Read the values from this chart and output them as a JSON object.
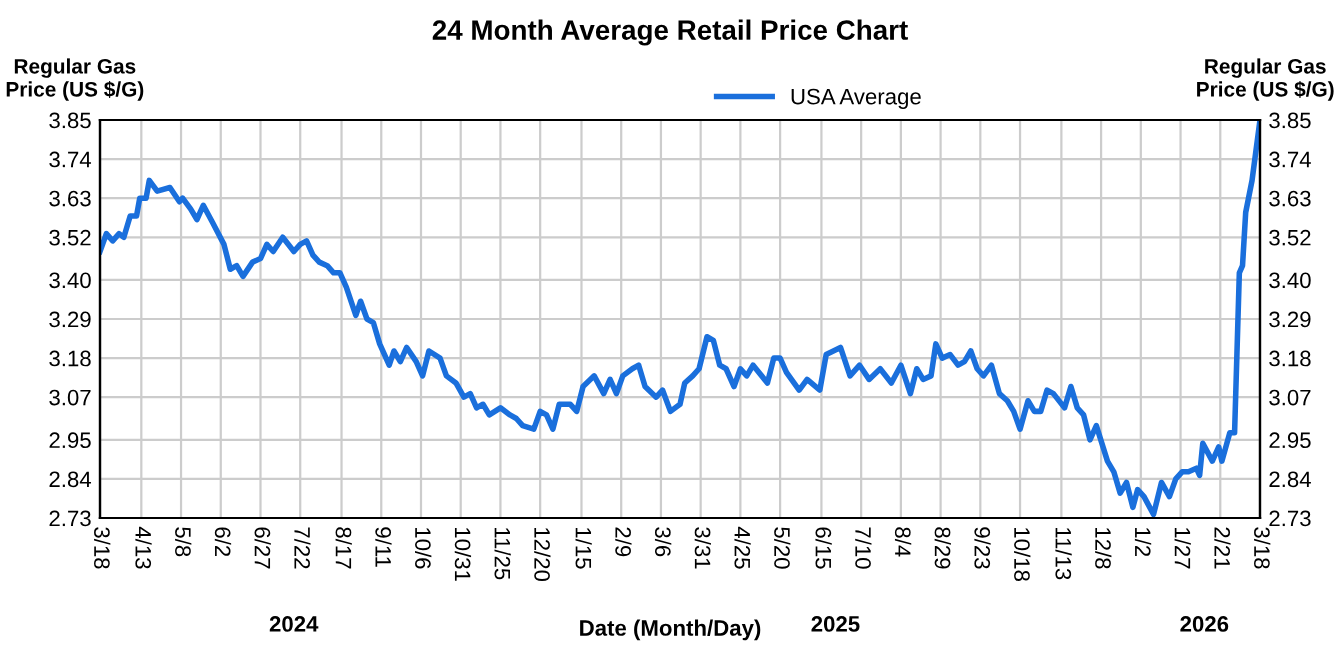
{
  "chart_data": {
    "type": "line",
    "title": "24 Month Average Retail Price Chart",
    "xlabel": "Date (Month/Day)",
    "ylabel": "Regular Gas\nPrice (US $/G)",
    "y2label": "Regular Gas\nPrice (US $/G)",
    "x": [
      "2024-03-18",
      "2024-03-22",
      "2024-03-26",
      "2024-03-30",
      "2024-04-02",
      "2024-04-06",
      "2024-04-10",
      "2024-04-12",
      "2024-04-16",
      "2024-04-18",
      "2024-04-23",
      "2024-05-01",
      "2024-05-07",
      "2024-05-09",
      "2024-05-14",
      "2024-05-18",
      "2024-05-22",
      "2024-05-28",
      "2024-06-04",
      "2024-06-08",
      "2024-06-12",
      "2024-06-16",
      "2024-06-22",
      "2024-06-27",
      "2024-07-01",
      "2024-07-05",
      "2024-07-11",
      "2024-07-18",
      "2024-07-22",
      "2024-07-26",
      "2024-07-30",
      "2024-08-03",
      "2024-08-08",
      "2024-08-12",
      "2024-08-16",
      "2024-08-20",
      "2024-08-26",
      "2024-08-29",
      "2024-09-02",
      "2024-09-06",
      "2024-09-10",
      "2024-09-16",
      "2024-09-19",
      "2024-09-23",
      "2024-09-27",
      "2024-10-03",
      "2024-10-07",
      "2024-10-11",
      "2024-10-18",
      "2024-10-22",
      "2024-10-28",
      "2024-11-02",
      "2024-11-06",
      "2024-11-10",
      "2024-11-14",
      "2024-11-18",
      "2024-11-25",
      "2024-12-01",
      "2024-12-05",
      "2024-12-09",
      "2024-12-16",
      "2024-12-20",
      "2024-12-24",
      "2024-12-28",
      "2025-01-01",
      "2025-01-08",
      "2025-01-12",
      "2025-01-16",
      "2025-01-23",
      "2025-01-29",
      "2025-02-02",
      "2025-02-06",
      "2025-02-10",
      "2025-02-16",
      "2025-02-20",
      "2025-02-24",
      "2025-03-03",
      "2025-03-07",
      "2025-03-12",
      "2025-03-18",
      "2025-03-21",
      "2025-03-26",
      "2025-03-30",
      "2025-04-04",
      "2025-04-08",
      "2025-04-12",
      "2025-04-16",
      "2025-04-21",
      "2025-04-25",
      "2025-04-29",
      "2025-05-03",
      "2025-05-12",
      "2025-05-16",
      "2025-05-20",
      "2025-05-24",
      "2025-06-01",
      "2025-06-06",
      "2025-06-14",
      "2025-06-18",
      "2025-06-27",
      "2025-07-03",
      "2025-07-09",
      "2025-07-15",
      "2025-07-22",
      "2025-07-29",
      "2025-08-04",
      "2025-08-10",
      "2025-08-14",
      "2025-08-18",
      "2025-08-23",
      "2025-08-26",
      "2025-08-30",
      "2025-09-04",
      "2025-09-09",
      "2025-09-13",
      "2025-09-17",
      "2025-09-21",
      "2025-09-25",
      "2025-09-30",
      "2025-10-05",
      "2025-10-10",
      "2025-10-14",
      "2025-10-18",
      "2025-10-23",
      "2025-10-27",
      "2025-10-31",
      "2025-11-04",
      "2025-11-08",
      "2025-11-15",
      "2025-11-19",
      "2025-11-23",
      "2025-11-27",
      "2025-12-01",
      "2025-12-05",
      "2025-12-12",
      "2025-12-16",
      "2025-12-20",
      "2025-12-24",
      "2025-12-28",
      "2025-12-31",
      "2026-01-04",
      "2026-01-10",
      "2026-01-15",
      "2026-01-20",
      "2026-01-24",
      "2026-01-28",
      "2026-02-01",
      "2026-02-06",
      "2026-02-08",
      "2026-02-10",
      "2026-02-16",
      "2026-02-20",
      "2026-02-22",
      "2026-02-27",
      "2026-03-02",
      "2026-03-05",
      "2026-03-07",
      "2026-03-09",
      "2026-03-13",
      "2026-03-18"
    ],
    "series": [
      {
        "name": "USA Average",
        "color": "#1a6fdc",
        "values": [
          3.48,
          3.53,
          3.51,
          3.53,
          3.52,
          3.58,
          3.58,
          3.63,
          3.63,
          3.68,
          3.65,
          3.66,
          3.62,
          3.63,
          3.6,
          3.57,
          3.61,
          3.56,
          3.5,
          3.43,
          3.44,
          3.41,
          3.45,
          3.46,
          3.5,
          3.48,
          3.52,
          3.48,
          3.5,
          3.51,
          3.47,
          3.45,
          3.44,
          3.42,
          3.42,
          3.38,
          3.3,
          3.34,
          3.29,
          3.28,
          3.22,
          3.16,
          3.2,
          3.17,
          3.21,
          3.17,
          3.13,
          3.2,
          3.18,
          3.13,
          3.11,
          3.07,
          3.08,
          3.04,
          3.05,
          3.02,
          3.04,
          3.02,
          3.01,
          2.99,
          2.98,
          3.03,
          3.02,
          2.98,
          3.05,
          3.05,
          3.03,
          3.1,
          3.13,
          3.08,
          3.12,
          3.08,
          3.13,
          3.15,
          3.16,
          3.1,
          3.07,
          3.09,
          3.03,
          3.05,
          3.11,
          3.13,
          3.15,
          3.24,
          3.23,
          3.16,
          3.15,
          3.1,
          3.15,
          3.13,
          3.16,
          3.11,
          3.18,
          3.18,
          3.14,
          3.09,
          3.12,
          3.09,
          3.19,
          3.21,
          3.13,
          3.16,
          3.12,
          3.15,
          3.11,
          3.16,
          3.08,
          3.15,
          3.12,
          3.13,
          3.22,
          3.18,
          3.19,
          3.16,
          3.17,
          3.2,
          3.15,
          3.13,
          3.16,
          3.08,
          3.06,
          3.03,
          2.98,
          3.06,
          3.03,
          3.03,
          3.09,
          3.08,
          3.04,
          3.1,
          3.04,
          3.02,
          2.95,
          2.99,
          2.89,
          2.86,
          2.8,
          2.83,
          2.76,
          2.81,
          2.79,
          2.74,
          2.83,
          2.79,
          2.84,
          2.86,
          2.86,
          2.87,
          2.85,
          2.94,
          2.89,
          2.93,
          2.89,
          2.97,
          2.97,
          3.42,
          3.44,
          3.59,
          3.68,
          3.85
        ]
      }
    ],
    "xlim": [
      "2024-03-18",
      "2026-03-18"
    ],
    "xticks": [
      {
        "value": "2024-03-18",
        "label": "3/18"
      },
      {
        "value": "2024-04-13",
        "label": "4/13"
      },
      {
        "value": "2024-05-08",
        "label": "5/8"
      },
      {
        "value": "2024-06-02",
        "label": "6/2"
      },
      {
        "value": "2024-06-27",
        "label": "6/27"
      },
      {
        "value": "2024-07-22",
        "label": "7/22"
      },
      {
        "value": "2024-08-17",
        "label": "8/17"
      },
      {
        "value": "2024-09-11",
        "label": "9/11"
      },
      {
        "value": "2024-10-06",
        "label": "10/6"
      },
      {
        "value": "2024-10-31",
        "label": "10/31"
      },
      {
        "value": "2024-11-25",
        "label": "11/25"
      },
      {
        "value": "2024-12-20",
        "label": "12/20"
      },
      {
        "value": "2025-01-15",
        "label": "1/15"
      },
      {
        "value": "2025-02-09",
        "label": "2/9"
      },
      {
        "value": "2025-03-06",
        "label": "3/6"
      },
      {
        "value": "2025-03-31",
        "label": "3/31"
      },
      {
        "value": "2025-04-25",
        "label": "4/25"
      },
      {
        "value": "2025-05-20",
        "label": "5/20"
      },
      {
        "value": "2025-06-15",
        "label": "6/15"
      },
      {
        "value": "2025-07-10",
        "label": "7/10"
      },
      {
        "value": "2025-08-04",
        "label": "8/4"
      },
      {
        "value": "2025-08-29",
        "label": "8/29"
      },
      {
        "value": "2025-09-23",
        "label": "9/23"
      },
      {
        "value": "2025-10-18",
        "label": "10/18"
      },
      {
        "value": "2025-11-13",
        "label": "11/13"
      },
      {
        "value": "2025-12-08",
        "label": "12/8"
      },
      {
        "value": "2026-01-02",
        "label": "1/2"
      },
      {
        "value": "2026-01-27",
        "label": "1/27"
      },
      {
        "value": "2026-02-21",
        "label": "2/21"
      },
      {
        "value": "2026-03-18",
        "label": "3/18"
      }
    ],
    "ylim": [
      2.73,
      3.85
    ],
    "yticks": [
      2.73,
      2.84,
      2.95,
      3.07,
      3.18,
      3.29,
      {
        "value": 3.4,
        "label": "3.40"
      },
      3.52,
      3.63,
      3.74,
      3.85
    ],
    "y2lim": [
      2.73,
      3.85
    ],
    "y2ticks": [
      2.73,
      2.84,
      2.95,
      3.07,
      3.18,
      3.29,
      {
        "value": 3.4,
        "label": "3.40"
      },
      3.52,
      3.63,
      3.74,
      3.85
    ],
    "annotations": [
      "2024",
      "2025",
      "2026"
    ],
    "grid": true,
    "legend": "top",
    "line_style": "solid",
    "marker": "none"
  }
}
